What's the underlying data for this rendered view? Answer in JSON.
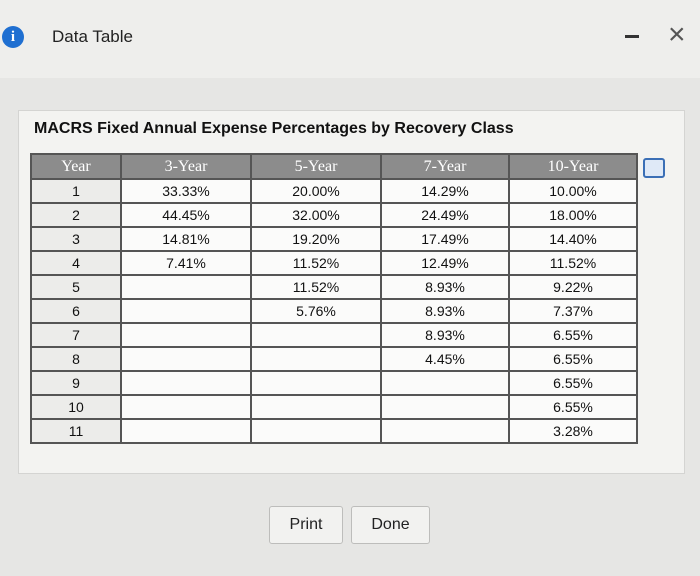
{
  "header": {
    "title": "Data Table"
  },
  "table": {
    "title": "MACRS Fixed Annual Expense Percentages by Recovery Class",
    "columns": [
      "Year",
      "3-Year",
      "5-Year",
      "7-Year",
      "10-Year"
    ],
    "rows": [
      [
        "1",
        "33.33%",
        "20.00%",
        "14.29%",
        "10.00%"
      ],
      [
        "2",
        "44.45%",
        "32.00%",
        "24.49%",
        "18.00%"
      ],
      [
        "3",
        "14.81%",
        "19.20%",
        "17.49%",
        "14.40%"
      ],
      [
        "4",
        "7.41%",
        "11.52%",
        "12.49%",
        "11.52%"
      ],
      [
        "5",
        null,
        "11.52%",
        "8.93%",
        "9.22%"
      ],
      [
        "6",
        null,
        "5.76%",
        "8.93%",
        "7.37%"
      ],
      [
        "7",
        null,
        null,
        "8.93%",
        "6.55%"
      ],
      [
        "8",
        null,
        null,
        "4.45%",
        "6.55%"
      ],
      [
        "9",
        null,
        null,
        null,
        "6.55%"
      ],
      [
        "10",
        null,
        null,
        null,
        "6.55%"
      ],
      [
        "11",
        null,
        null,
        null,
        "3.28%"
      ]
    ]
  },
  "buttons": [
    "Print",
    "Done"
  ]
}
